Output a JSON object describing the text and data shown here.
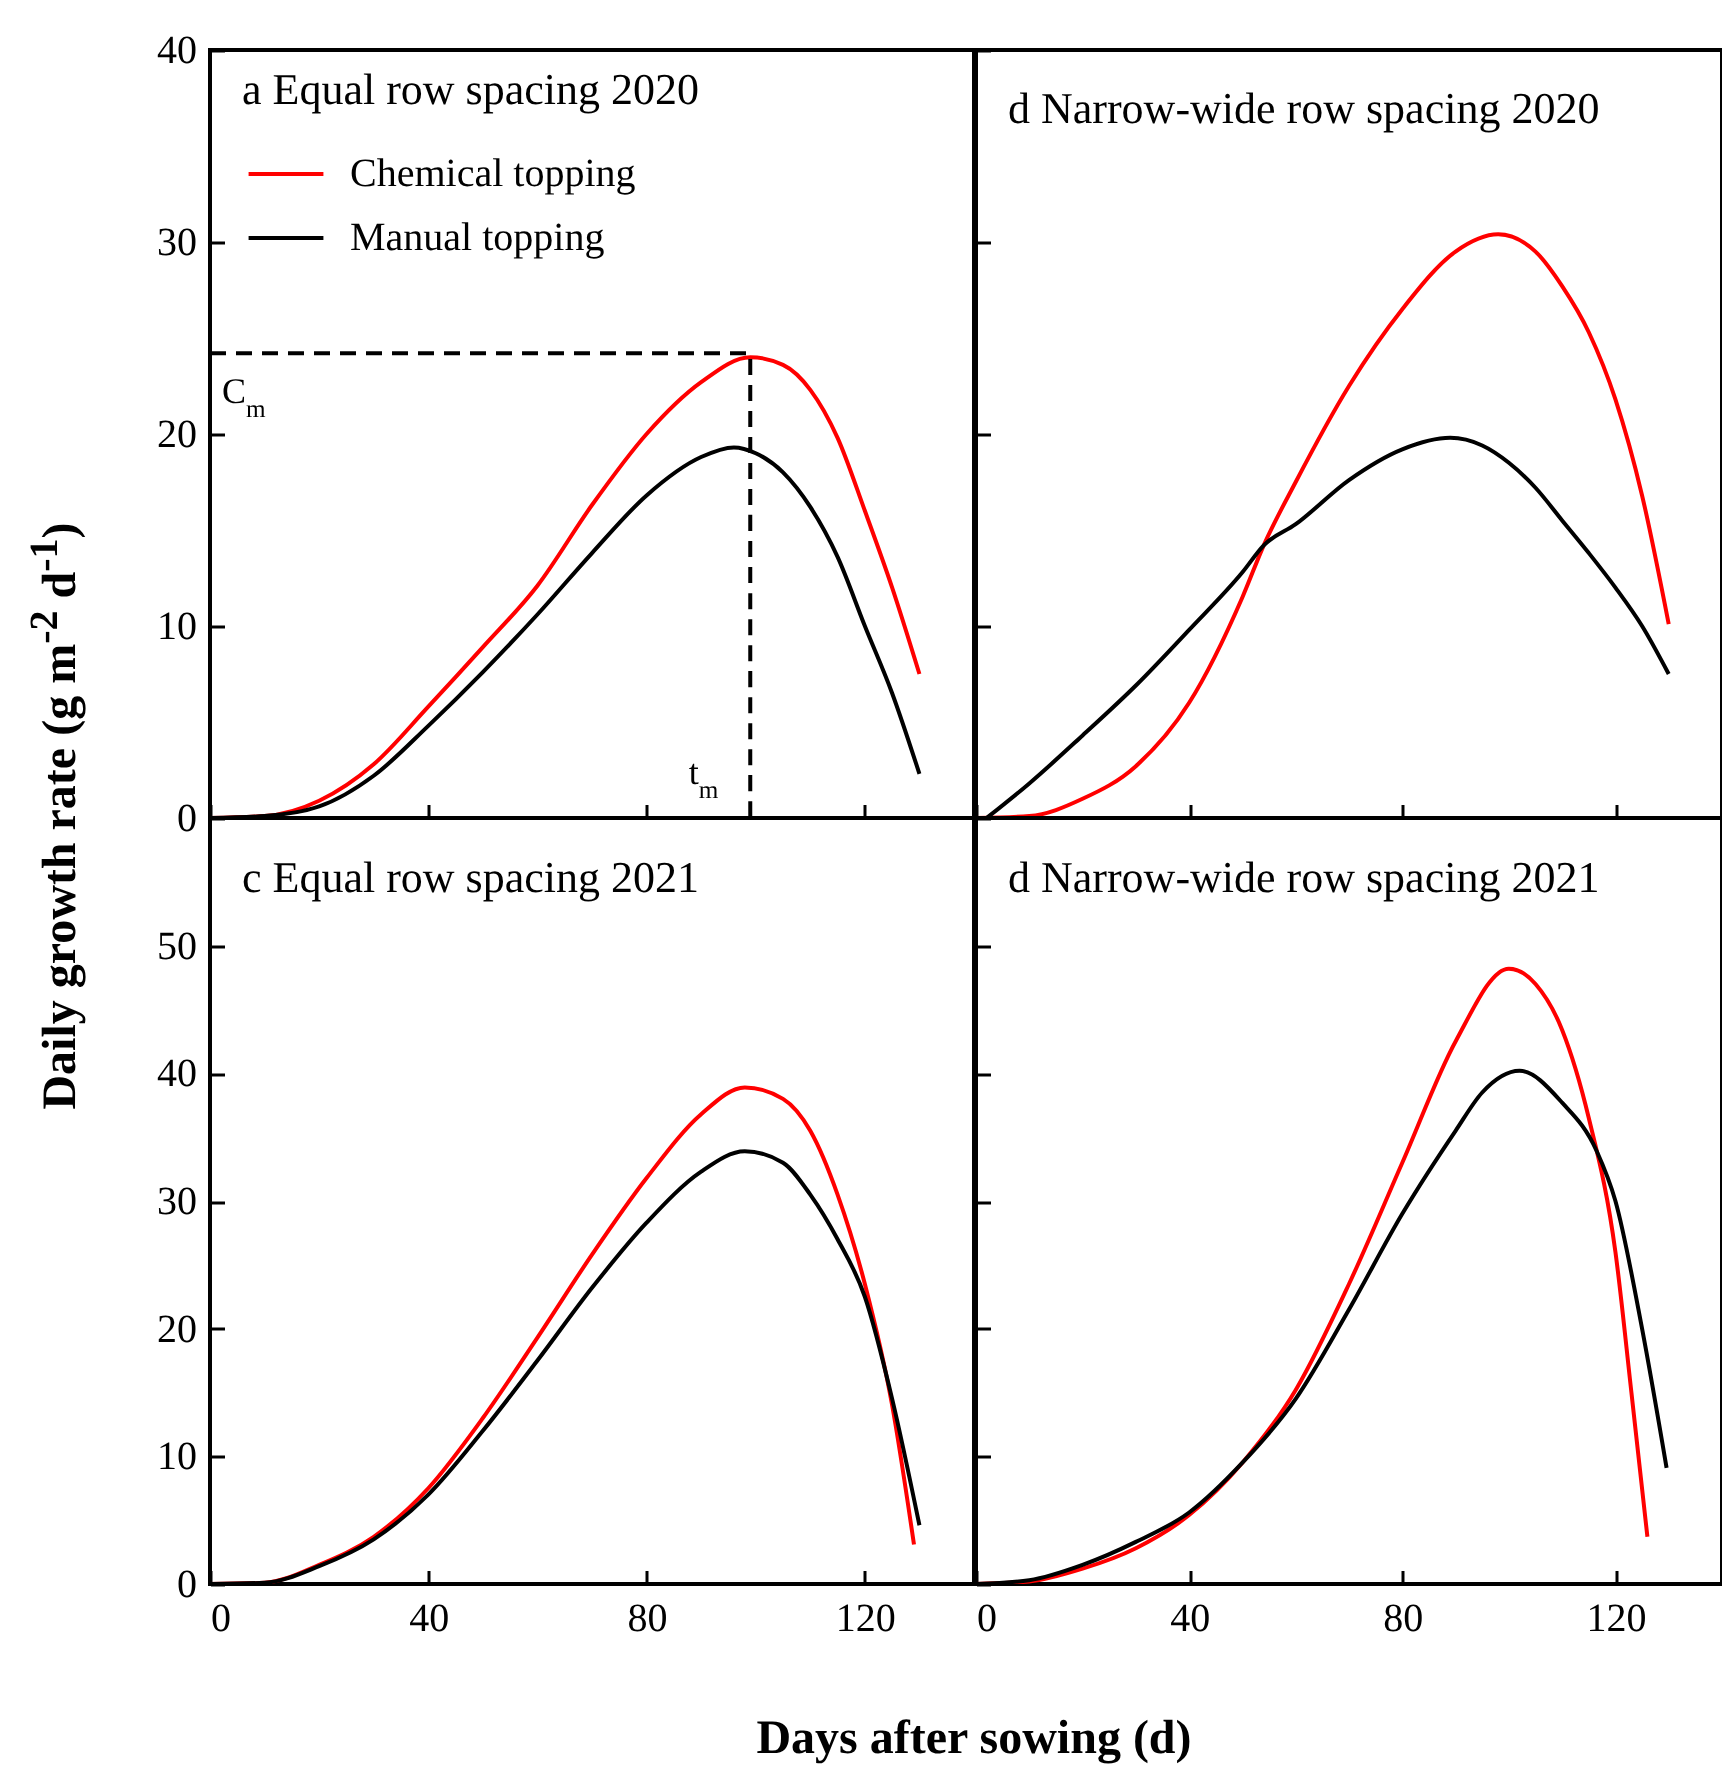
{
  "chart_data": [
    {
      "type": "line",
      "title": "a Equal row spacing 2020",
      "ylabel": "Daily growth rate (g m$^{-2}$ d$^{-1}$)",
      "xlim": [
        0,
        140
      ],
      "xticks": [
        0,
        40,
        80,
        120
      ],
      "ylim": [
        0,
        40
      ],
      "yticks": [
        0,
        10,
        20,
        30,
        40
      ],
      "tick_labels": "y",
      "legend": "top left",
      "series": [
        {
          "name": "Chemical topping",
          "color": "#ff0000",
          "x": [
            0,
            10,
            20,
            30,
            40,
            50,
            60,
            70,
            80,
            90,
            99,
            105,
            110,
            115,
            120,
            125,
            130
          ],
          "values": [
            0,
            0.1,
            0.9,
            2.8,
            5.8,
            8.9,
            12.1,
            16.3,
            20,
            22.7,
            24,
            23.6,
            22.3,
            19.8,
            16,
            12,
            7.5
          ]
        },
        {
          "name": "Manual topping",
          "color": "#000000",
          "x": [
            0,
            10,
            20,
            30,
            40,
            50,
            60,
            70,
            80,
            90,
            96,
            100,
            105,
            110,
            115,
            120,
            125,
            130
          ],
          "values": [
            0,
            0.1,
            0.6,
            2.2,
            4.8,
            7.6,
            10.6,
            13.8,
            16.8,
            18.8,
            19.3,
            19,
            18,
            16.2,
            13.6,
            10,
            6.5,
            2.3
          ]
        },
        {
          "type": "line",
          "color": "#000000",
          "line_style": "dashed",
          "x": [
            0,
            99,
            99
          ],
          "values": [
            24.2,
            24.2,
            0
          ]
        }
      ],
      "annotations": [
        {
          "text": "C$_{m}$",
          "x": 0,
          "y": 24.2
        },
        {
          "text": "t$_{m}$",
          "x": 99,
          "y": 0
        }
      ]
    },
    {
      "type": "line",
      "title": "d Narrow-wide row spacing 2020",
      "xlim": [
        0,
        140
      ],
      "xticks": [
        0,
        40,
        80,
        120
      ],
      "ylim": [
        0,
        40
      ],
      "yticks": [
        0,
        10,
        20,
        30,
        40
      ],
      "tick_labels": false,
      "series": [
        {
          "color": "#ff0000",
          "x": [
            0,
            10,
            20,
            30,
            40,
            50,
            54,
            60,
            70,
            80,
            90,
            98,
            105,
            110,
            115,
            120,
            125,
            130
          ],
          "values": [
            0,
            0.1,
            1,
            2.7,
            6,
            11.5,
            14.2,
            17.5,
            22.5,
            26.5,
            29.5,
            30.4,
            29.5,
            27.7,
            25.3,
            21.8,
            16.8,
            10.1
          ]
        },
        {
          "color": "#000000",
          "x": [
            2,
            10,
            20,
            30,
            40,
            50,
            54,
            60,
            70,
            80,
            89,
            95,
            100,
            105,
            110,
            115,
            120,
            125,
            130
          ],
          "values": [
            0,
            1.8,
            4.3,
            6.9,
            9.8,
            12.8,
            14.2,
            15.3,
            17.6,
            19.2,
            19.8,
            19.4,
            18.5,
            17.2,
            15.5,
            13.8,
            12,
            10,
            7.5
          ]
        }
      ]
    },
    {
      "type": "line",
      "title": "c Equal row spacing 2021",
      "xlabel": "Days after sowing (d)",
      "xlim": [
        0,
        140
      ],
      "xticks": [
        0,
        40,
        80,
        120
      ],
      "ylim": [
        0,
        60
      ],
      "yticks": [
        0,
        10,
        20,
        30,
        40,
        50
      ],
      "series": [
        {
          "color": "#ff0000",
          "x": [
            0,
            10,
            20,
            30,
            40,
            50,
            60,
            70,
            80,
            90,
            98,
            105,
            110,
            115,
            120,
            125,
            129
          ],
          "values": [
            0,
            0.1,
            1.5,
            3.7,
            7.5,
            13,
            19.3,
            25.8,
            31.8,
            36.8,
            38.9,
            38,
            35.5,
            30.5,
            23.5,
            14,
            3.1
          ]
        },
        {
          "color": "#000000",
          "x": [
            0,
            10,
            20,
            30,
            40,
            50,
            60,
            70,
            80,
            90,
            98,
            105,
            110,
            115,
            120,
            125,
            130
          ],
          "values": [
            0,
            0.1,
            1.4,
            3.5,
            7,
            12,
            17.5,
            23.2,
            28.3,
            32.3,
            33.9,
            33,
            30.5,
            27,
            22.5,
            14.5,
            4.6
          ]
        }
      ]
    },
    {
      "type": "line",
      "title": "d Narrow-wide row spacing 2021",
      "xlim": [
        0,
        140
      ],
      "xticks": [
        0,
        40,
        80,
        120
      ],
      "ylim": [
        0,
        60
      ],
      "yticks": [
        0,
        10,
        20,
        30,
        40,
        50
      ],
      "tick_labels": "x",
      "series": [
        {
          "color": "#ff0000",
          "x": [
            0,
            10,
            20,
            30,
            40,
            50,
            60,
            70,
            80,
            90,
            100,
            105,
            110,
            115,
            120,
            123,
            126
          ],
          "values": [
            0,
            0.2,
            1.2,
            2.8,
            5.4,
            9.5,
            15.2,
            23.5,
            33,
            42.5,
            48.2,
            47,
            43.4,
            36.5,
            26,
            15,
            3.7
          ]
        },
        {
          "color": "#000000",
          "x": [
            0,
            10,
            20,
            30,
            40,
            50,
            60,
            70,
            80,
            90,
            95,
            102,
            110,
            116.5,
            120,
            125,
            129.6
          ],
          "values": [
            0,
            0.3,
            1.5,
            3.3,
            5.6,
            9.5,
            14.5,
            21.5,
            29,
            35.5,
            38.5,
            40.2,
            37.7,
            33.9,
            30,
            20,
            9.1
          ]
        }
      ]
    }
  ]
}
